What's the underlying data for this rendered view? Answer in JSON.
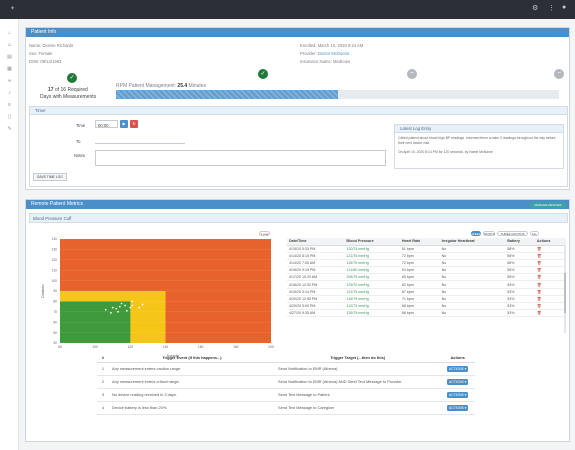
{
  "patient_info": {
    "header": "Patient Info",
    "name": "Name: Denise Richards",
    "sex": "Sex: Female",
    "dob": "DOB: 09/14/1963",
    "enrolled": "Enrolled: March 10, 2020 8:24 AM",
    "provider_label": "Provider:",
    "provider_value": "Doctor McDoctor",
    "insurance": "Insurance Name: Medicare",
    "measurement_count": "17",
    "measurement_text": "of 16 Required",
    "measurement_text2": "Days with Measurements",
    "rpm_label": "RPM Patient Management:",
    "rpm_value": "25.4",
    "rpm_unit": "Minutes",
    "rpm_progress_fraction": 0.5
  },
  "timer": {
    "header": "Timer",
    "time_label": "Time",
    "time_value": "00:00",
    "to_label": "To",
    "notes_label": "Notes",
    "save_label": "SAVE TIME LOG"
  },
  "latest_log": {
    "header": "Latest Log Entry",
    "line1": "Called patient about blood high BP readings. Informed them to take 3 readings throughout the day before their next doctor visit.",
    "line2": "On April 10, 2020 8:14 PM for 120 seconds, by Name McName"
  },
  "rpm": {
    "header": "Remote Patient Metrics",
    "manage_label": "MANAGE DEVICES",
    "bp_header": "Blood Pressure Cuff",
    "chart_pill": "1 year",
    "table_pills": [
      "WEEK",
      "MONTH",
      "THREE MONTHS",
      "ALL"
    ],
    "table_headers": [
      "Date/Time",
      "Blood Pressure",
      "Heart Rate",
      "Irregular Heartbeat",
      "Battery",
      "Actions"
    ],
    "rows": [
      [
        "4/15/20 5:33 PM",
        "120/74 mmHg",
        "61 bpm",
        "No",
        "58%"
      ],
      [
        "4/14/20 8:15 PM",
        "121/76 mmHg",
        "72 bpm",
        "No",
        "56%"
      ],
      [
        "4/14/20 7:05 AM",
        "115/75 mmHg",
        "72 bpm",
        "No",
        "56%"
      ],
      [
        "4/16/20 9:19 PM",
        "121/80 mmHg",
        "53 bpm",
        "No",
        "55%"
      ],
      [
        "4/17/20 10:20 AM",
        "108/75 mmHg",
        "65 bpm",
        "No",
        "55%"
      ],
      [
        "4/18/20 12:30 PM",
        "125/70 mmHg",
        "62 bpm",
        "No",
        "54%"
      ],
      [
        "4/19/20 3:14 PM",
        "121/75 mmHg",
        "67 bpm",
        "No",
        "53%"
      ],
      [
        "4/20/20 12:55 PM",
        "115/79 mmHg",
        "71 bpm",
        "No",
        "53%"
      ],
      [
        "4/20/20 5:00 PM",
        "112/73 mmHg",
        "68 bpm",
        "No",
        "53%"
      ],
      [
        "4/27/20 9:35 AM",
        "126/79 mmHg",
        "66 bpm",
        "No",
        "53%"
      ]
    ]
  },
  "triggers": {
    "headers": [
      "#",
      "Trigger Event (If this happens...)",
      "Trigger Target (...then do this)",
      "Actions"
    ],
    "rows": [
      [
        "1",
        "Any measurement enters caution range.",
        "Send Notification to EMR (Athena)"
      ],
      [
        "2",
        "Any measurement enters critical range.",
        "Send Notification to EMR (Athena) AND Send Text Message to Provider"
      ],
      [
        "3",
        "No device reading received in 3 days.",
        "Send Text Message to Patient"
      ],
      [
        "4",
        "Device battery is less than 20%.",
        "Send Text Message to Caregiver"
      ]
    ],
    "action_label": "ACTIONS ▾"
  },
  "chart_data": {
    "type": "scatter",
    "xlabel": "Systolic",
    "ylabel": "Diastolic",
    "xlim": [
      80,
      200
    ],
    "ylim": [
      40,
      140
    ],
    "x_ticks": [
      "80",
      "90",
      "100",
      "110",
      "120",
      "130",
      "140",
      "150",
      "160",
      "170",
      "180",
      "190",
      "200"
    ],
    "y_ticks": [
      "140",
      "130",
      "120",
      "110",
      "100",
      "90",
      "80",
      "70",
      "60",
      "50",
      "40"
    ],
    "zones": [
      {
        "name": "high",
        "color": "#e8632b",
        "x": [
          80,
          200
        ],
        "y": [
          40,
          140
        ]
      },
      {
        "name": "elevated",
        "color": "#f5c518",
        "x": [
          80,
          140
        ],
        "y": [
          40,
          90
        ]
      },
      {
        "name": "normal",
        "color": "#3e9a3a",
        "x": [
          80,
          120
        ],
        "y": [
          40,
          80
        ]
      }
    ],
    "points": [
      {
        "x": 106,
        "y": 72
      },
      {
        "x": 110,
        "y": 74
      },
      {
        "x": 114,
        "y": 75
      },
      {
        "x": 117,
        "y": 76
      },
      {
        "x": 120,
        "y": 74
      },
      {
        "x": 121,
        "y": 76
      },
      {
        "x": 113,
        "y": 70
      },
      {
        "x": 118,
        "y": 71
      },
      {
        "x": 125,
        "y": 74
      },
      {
        "x": 121,
        "y": 80
      },
      {
        "x": 109,
        "y": 69
      },
      {
        "x": 115,
        "y": 78
      },
      {
        "x": 112,
        "y": 73
      },
      {
        "x": 127,
        "y": 77
      }
    ]
  }
}
